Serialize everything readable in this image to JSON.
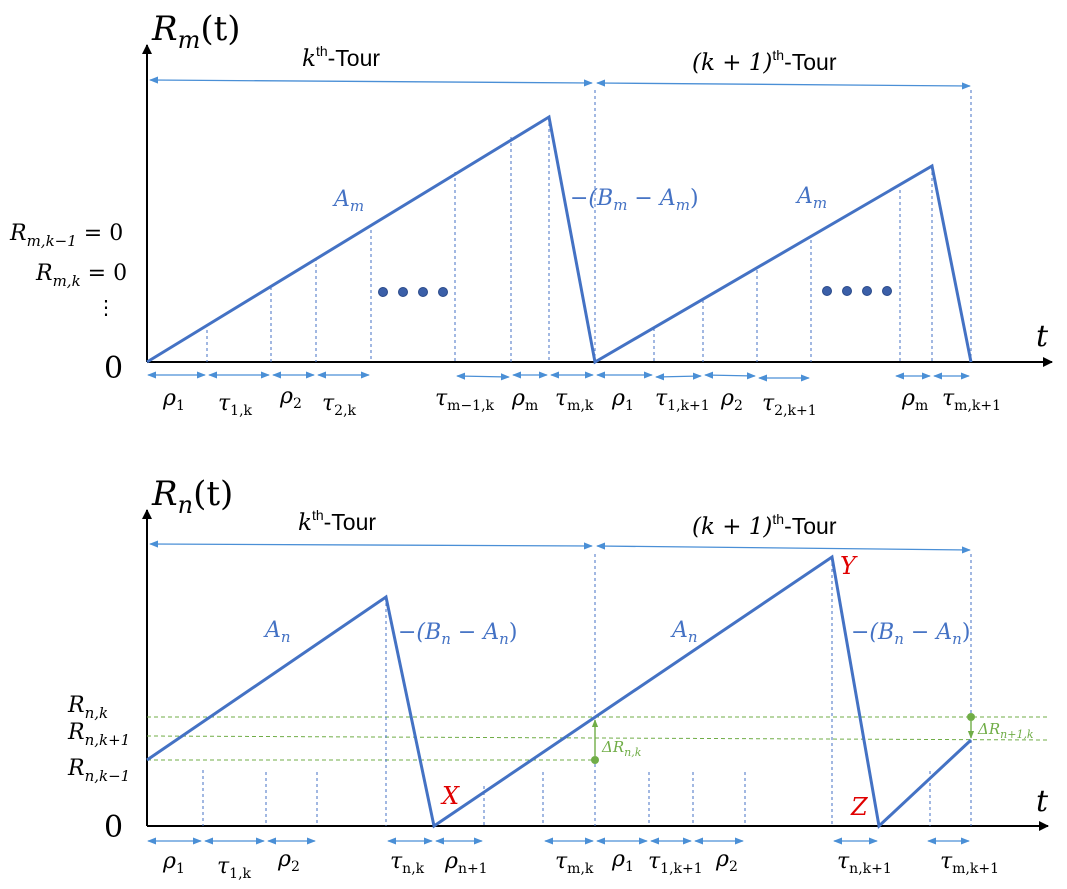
{
  "top": {
    "ylabel": "R",
    "ylabel_sub": "m",
    "ylabel_arg": "(t)",
    "xlabel": "t",
    "origin": "0",
    "tour_k": {
      "var": "k",
      "sup": "th",
      "suffix": "-Tour"
    },
    "tour_k1": {
      "var": "(k + 1)",
      "sup": "th",
      "suffix": "-Tour"
    },
    "slope1": "A",
    "slope1_sub": "m",
    "slope2": "A",
    "slope2_sub": "m",
    "fall": "−(B",
    "fall_sub1": "m",
    "fall_mid": " − A",
    "fall_sub2": "m",
    "fall_end": ")",
    "left_labels": [
      {
        "main": "R",
        "sub": "m,k−1",
        "rest": " = 0"
      },
      {
        "main": "R",
        "sub": "m,k",
        "rest": " = 0"
      },
      {
        "main": "⋮",
        "sub": "",
        "rest": ""
      }
    ],
    "intervals": [
      {
        "sym": "ρ",
        "sub": "1"
      },
      {
        "sym": "τ",
        "sub": "1,k"
      },
      {
        "sym": "ρ",
        "sub": "2"
      },
      {
        "sym": "τ",
        "sub": "2,k"
      },
      {
        "sym": "τ",
        "sub": "m−1,k"
      },
      {
        "sym": "ρ",
        "sub": "m"
      },
      {
        "sym": "τ",
        "sub": "m,k"
      },
      {
        "sym": "ρ",
        "sub": "1"
      },
      {
        "sym": "τ",
        "sub": "1,k+1"
      },
      {
        "sym": "ρ",
        "sub": "2"
      },
      {
        "sym": "τ",
        "sub": "2,k+1"
      },
      {
        "sym": "ρ",
        "sub": "m"
      },
      {
        "sym": "τ",
        "sub": "m,k+1"
      }
    ]
  },
  "bottom": {
    "ylabel": "R",
    "ylabel_sub": "n",
    "ylabel_arg": "(t)",
    "xlabel": "t",
    "origin": "0",
    "tour_k": {
      "var": "k",
      "sup": "th",
      "suffix": "-Tour"
    },
    "tour_k1": {
      "var": "(k + 1)",
      "sup": "th",
      "suffix": "-Tour"
    },
    "slope1": "A",
    "slope1_sub": "n",
    "slope2": "A",
    "slope2_sub": "n",
    "fall": "−(B",
    "fall_sub1": "n",
    "fall_mid": " − A",
    "fall_sub2": "n",
    "fall_end": ")",
    "left_labels": [
      {
        "main": "R",
        "sub": "n,k"
      },
      {
        "main": "R",
        "sub": "n,k+1"
      },
      {
        "main": "R",
        "sub": "n,k−1"
      }
    ],
    "points": {
      "x": "X",
      "y": "Y",
      "z": "Z"
    },
    "delta1": {
      "main": "ΔR",
      "sub": "n,k"
    },
    "delta2": {
      "main": "ΔR",
      "sub": "n+1,k"
    },
    "intervals": [
      {
        "sym": "ρ",
        "sub": "1"
      },
      {
        "sym": "τ",
        "sub": "1,k"
      },
      {
        "sym": "ρ",
        "sub": "2"
      },
      {
        "sym": "τ",
        "sub": "n,k"
      },
      {
        "sym": "ρ",
        "sub": "n+1"
      },
      {
        "sym": "τ",
        "sub": "m,k"
      },
      {
        "sym": "ρ",
        "sub": "1"
      },
      {
        "sym": "τ",
        "sub": "1,k+1"
      },
      {
        "sym": "ρ",
        "sub": "2"
      },
      {
        "sym": "τ",
        "sub": "n,k+1"
      },
      {
        "sym": "τ",
        "sub": "m,k+1"
      }
    ]
  },
  "colors": {
    "line": "#4472c4",
    "arrow": "#4a8fd6",
    "axis": "#000000",
    "guide": "#70ad47",
    "point_label": "#e00000"
  }
}
